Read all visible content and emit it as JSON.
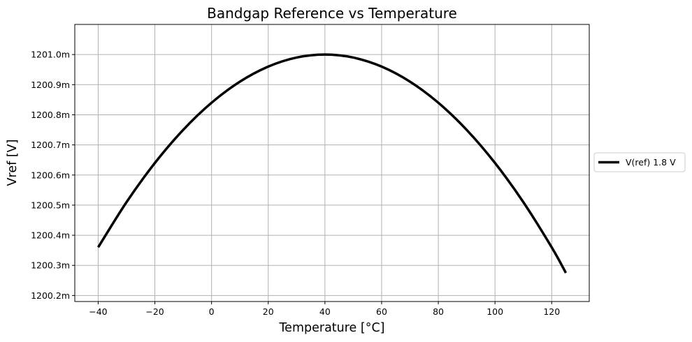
{
  "chart_data": {
    "type": "line",
    "title": "Bandgap Reference vs Temperature",
    "xlabel": "Temperature [°C]",
    "ylabel": "Vref [V]",
    "xlim": [
      -48.25,
      133.25
    ],
    "ylim": [
      1200.18,
      1201.1
    ],
    "xticks": [
      -40,
      -20,
      0,
      20,
      40,
      60,
      80,
      100,
      120
    ],
    "xtick_labels": [
      "−40",
      "−20",
      "0",
      "20",
      "40",
      "60",
      "80",
      "100",
      "120"
    ],
    "yticks": [
      1200.2,
      1200.3,
      1200.4,
      1200.5,
      1200.6,
      1200.7,
      1200.8,
      1200.9,
      1201.0
    ],
    "ytick_labels": [
      "1200.2m",
      "1200.3m",
      "1200.4m",
      "1200.5m",
      "1200.6m",
      "1200.7m",
      "1200.8m",
      "1200.9m",
      "1201.0m"
    ],
    "grid": true,
    "legend_position": "outside-right",
    "series": [
      {
        "name": "V(ref) 1.8 V",
        "color": "#000000",
        "x": [
          -40,
          -30,
          -20,
          -10,
          0,
          10,
          20,
          30,
          40,
          50,
          60,
          70,
          80,
          90,
          100,
          110,
          120,
          125
        ],
        "y": [
          1200.36,
          1200.51,
          1200.64,
          1200.75,
          1200.84,
          1200.91,
          1200.96,
          1200.99,
          1201.0,
          1200.99,
          1200.96,
          1200.91,
          1200.84,
          1200.75,
          1200.64,
          1200.51,
          1200.36,
          1200.275
        ]
      }
    ]
  }
}
